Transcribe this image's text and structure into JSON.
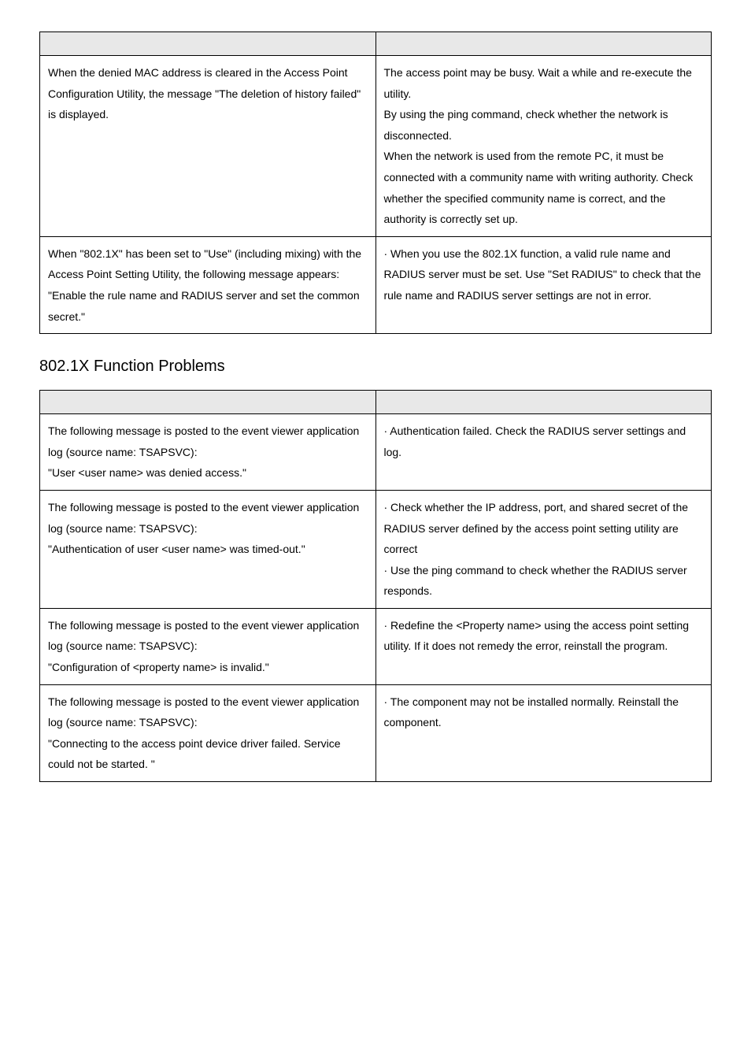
{
  "table1": {
    "rows": [
      {
        "left": "  When the denied MAC address is cleared in the Access Point Configuration Utility, the message \"The deletion of history failed\" is displayed.",
        "right": "  The access point may be busy.  Wait a while and re-execute the utility.\n  By using the ping command, check whether the network is disconnected.\n  When the network is used from the remote PC, it must be connected with a community name with writing authority.   Check whether the specified community name is correct, and the authority is correctly set up."
      },
      {
        "left": "  When \"802.1X\" has been set to \"Use\" (including mixing) with the Access Point Setting Utility, the following message appears:\n\"Enable the rule name and RADIUS server and set the common secret.\"",
        "right": "· When you use the 802.1X function, a valid rule name and RADIUS server must be set. Use \"Set RADIUS\" to check that the rule name and RADIUS server settings are not in error."
      }
    ]
  },
  "section_title": "802.1X Function Problems",
  "table2": {
    "rows": [
      {
        "left": "The following message is posted to the event viewer application log (source name: TSAPSVC):\n\"User <user name> was denied access.\"",
        "right": "· Authentication failed.   Check the RADIUS server settings and log."
      },
      {
        "left": "The following message is posted to the event viewer application log (source name: TSAPSVC):\n\"Authentication of user <user name> was timed-out.\"",
        "right": "· Check whether the IP address, port, and shared secret of the RADIUS server defined by the access point setting utility are correct\n· Use the ping command to check whether the RADIUS server responds."
      },
      {
        "left": "The following message is posted to the event viewer application log (source name: TSAPSVC):\n\"Configuration of <property name> is invalid.\"",
        "right": "· Redefine the <Property name> using the access point setting utility.  If it does not remedy the error, reinstall the program."
      },
      {
        "left": "The following message is posted to the event viewer application log (source name: TSAPSVC):\n\"Connecting to the access point device driver failed.  Service could not be started. \"",
        "right": "· The component may not be installed normally.  Reinstall the component."
      }
    ]
  },
  "colors": {
    "header_bg": "#e8e8e8",
    "border": "#000000",
    "text": "#000000",
    "background": "#ffffff"
  }
}
